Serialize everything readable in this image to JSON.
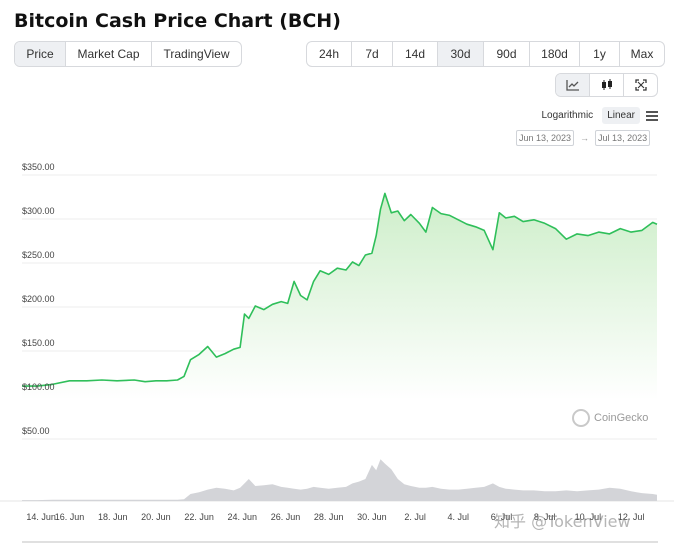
{
  "page": {
    "title": "Bitcoin Cash Price Chart (BCH)"
  },
  "view_tabs": [
    {
      "label": "Price",
      "active": true
    },
    {
      "label": "Market Cap",
      "active": false
    },
    {
      "label": "TradingView",
      "active": false
    }
  ],
  "range_tabs": [
    {
      "label": "24h",
      "active": false
    },
    {
      "label": "7d",
      "active": false
    },
    {
      "label": "14d",
      "active": false
    },
    {
      "label": "30d",
      "active": true
    },
    {
      "label": "90d",
      "active": false
    },
    {
      "label": "180d",
      "active": false
    },
    {
      "label": "1y",
      "active": false
    },
    {
      "label": "Max",
      "active": false
    }
  ],
  "tools": [
    {
      "icon": "line-chart-icon",
      "active": true
    },
    {
      "icon": "candlestick-icon",
      "active": false
    },
    {
      "icon": "fullscreen-icon",
      "active": false
    }
  ],
  "scale": {
    "logarithmic": "Logarithmic",
    "linear": "Linear",
    "active": "linear"
  },
  "date_range": {
    "from": "Jun 13, 2023",
    "to": "Jul 13, 2023",
    "separator": "→"
  },
  "watermark": {
    "text": "CoinGecko"
  },
  "overlay_watermark": "知乎 @TokenView",
  "colors": {
    "line": "#2fbf5a",
    "area_top": "#cdeec9",
    "area_bottom": "#ffffff",
    "volume": "#d3d4d8",
    "grid": "#ededed"
  },
  "chart_data": {
    "type": "area",
    "title": "",
    "xlabel": "",
    "ylabel": "",
    "y_ticks": [
      "$350.00",
      "$300.00",
      "$250.00",
      "$200.00",
      "$150.00",
      "$100.00",
      "$50.00"
    ],
    "y_tick_values": [
      350,
      300,
      250,
      200,
      150,
      100,
      50
    ],
    "ylim": [
      0,
      375
    ],
    "xlim": [
      13.8,
      43.2
    ],
    "x_ticks": [
      "14. Jun",
      "16. Jun",
      "18. Jun",
      "20. Jun",
      "22. Jun",
      "24. Jun",
      "26. Jun",
      "28. Jun",
      "30. Jun",
      "2. Jul",
      "4. Jul",
      "6. Jul",
      "8. Jul",
      "10. Jul",
      "12. Jul"
    ],
    "x_tick_values": [
      14,
      16,
      18,
      20,
      22,
      24,
      26,
      28,
      30,
      32,
      34,
      36,
      38,
      40,
      42
    ],
    "x": [
      13.8,
      14.5,
      15.2,
      16,
      16.8,
      17.5,
      18.2,
      19,
      19.5,
      20,
      20.5,
      21,
      21.3,
      21.6,
      22,
      22.4,
      22.8,
      23.2,
      23.6,
      23.9,
      24.1,
      24.3,
      24.6,
      25,
      25.4,
      25.8,
      26.1,
      26.4,
      26.7,
      27,
      27.3,
      27.6,
      28,
      28.4,
      28.8,
      29.1,
      29.4,
      29.7,
      30,
      30.2,
      30.4,
      30.6,
      30.9,
      31.2,
      31.5,
      31.8,
      32.2,
      32.5,
      32.8,
      33.2,
      33.6,
      34,
      34.4,
      34.8,
      35.2,
      35.6,
      35.9,
      36.2,
      36.6,
      37,
      37.5,
      38,
      38.5,
      39,
      39.5,
      40,
      40.5,
      41,
      41.5,
      42,
      42.5,
      43,
      43.2
    ],
    "series": [
      {
        "values": [
          101,
          101,
          103,
          107,
          107,
          108,
          107,
          108,
          106,
          107,
          107,
          108,
          112,
          131,
          137,
          146,
          134,
          138,
          143,
          145,
          183,
          178,
          192,
          188,
          194,
          197,
          195,
          220,
          204,
          199,
          220,
          232,
          228,
          235,
          233,
          242,
          238,
          250,
          252,
          272,
          302,
          320,
          298,
          300,
          289,
          296,
          286,
          276,
          304,
          297,
          295,
          290,
          285,
          282,
          278,
          256,
          298,
          292,
          294,
          288,
          290,
          286,
          280,
          268,
          274,
          272,
          276,
          274,
          280,
          276,
          278,
          287,
          285
        ]
      }
    ],
    "volume_share": [
      0.02,
      0.02,
      0.03,
      0.03,
      0.03,
      0.03,
      0.03,
      0.03,
      0.03,
      0.03,
      0.03,
      0.03,
      0.04,
      0.16,
      0.2,
      0.26,
      0.3,
      0.28,
      0.24,
      0.3,
      0.4,
      0.5,
      0.34,
      0.36,
      0.38,
      0.32,
      0.3,
      0.28,
      0.26,
      0.28,
      0.32,
      0.3,
      0.28,
      0.3,
      0.32,
      0.4,
      0.44,
      0.5,
      0.82,
      0.7,
      0.95,
      0.85,
      0.72,
      0.5,
      0.38,
      0.34,
      0.3,
      0.3,
      0.32,
      0.28,
      0.26,
      0.26,
      0.28,
      0.3,
      0.32,
      0.4,
      0.32,
      0.28,
      0.26,
      0.24,
      0.24,
      0.22,
      0.22,
      0.24,
      0.22,
      0.24,
      0.26,
      0.3,
      0.28,
      0.22,
      0.18,
      0.16,
      0.14
    ]
  }
}
